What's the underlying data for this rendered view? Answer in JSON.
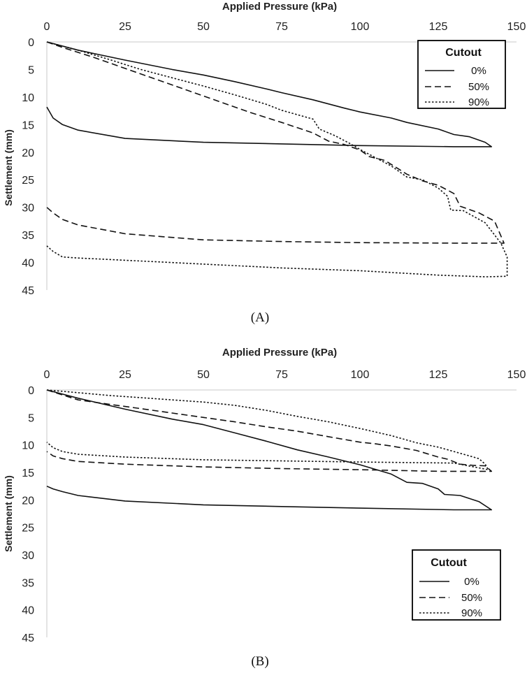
{
  "chart_data": [
    {
      "type": "line",
      "panel": "A",
      "caption": "(A)",
      "xlabel": "Applied Pressure (kPa)",
      "ylabel": "Settlement (mm)",
      "xlim": [
        0,
        150
      ],
      "ylim": [
        0,
        45
      ],
      "x_ticks": [
        "0",
        "25",
        "50",
        "75",
        "100",
        "125",
        "150"
      ],
      "y_ticks": [
        "0",
        "5",
        "10",
        "15",
        "20",
        "25",
        "30",
        "35",
        "40",
        "45"
      ],
      "x_axis_position": "top",
      "y_inverted": true,
      "legend": {
        "title": "Cutout",
        "position": "top-right",
        "entries": [
          "0%",
          "50%",
          "90%"
        ]
      },
      "series": [
        {
          "name": "0%",
          "style": "solid",
          "points": [
            [
              0,
              0
            ],
            [
              10,
              1.5
            ],
            [
              25,
              3.3
            ],
            [
              40,
              5.0
            ],
            [
              50,
              6.0
            ],
            [
              60,
              7.2
            ],
            [
              70,
              8.5
            ],
            [
              75,
              9.2
            ],
            [
              85,
              10.5
            ],
            [
              95,
              12.0
            ],
            [
              100,
              12.7
            ],
            [
              110,
              13.8
            ],
            [
              115,
              14.6
            ],
            [
              125,
              15.8
            ],
            [
              130,
              16.8
            ],
            [
              135,
              17.2
            ],
            [
              140,
              18.2
            ],
            [
              142,
              19
            ],
            [
              130,
              19.0
            ],
            [
              100,
              18.8
            ],
            [
              75,
              18.5
            ],
            [
              50,
              18.2
            ],
            [
              25,
              17.5
            ],
            [
              10,
              16.0
            ],
            [
              5,
              15.0
            ],
            [
              2,
              13.8
            ],
            [
              1,
              12.8
            ],
            [
              0,
              11.8
            ]
          ]
        },
        {
          "name": "50%",
          "style": "dashed",
          "points": [
            [
              0,
              0
            ],
            [
              5,
              1.0
            ],
            [
              15,
              2.8
            ],
            [
              25,
              4.8
            ],
            [
              35,
              6.8
            ],
            [
              45,
              8.8
            ],
            [
              55,
              10.8
            ],
            [
              65,
              12.8
            ],
            [
              75,
              14.6
            ],
            [
              85,
              16.5
            ],
            [
              90,
              18.0
            ],
            [
              95,
              18.6
            ],
            [
              100,
              19.6
            ],
            [
              103,
              20.8
            ],
            [
              108,
              21.5
            ],
            [
              115,
              24.0
            ],
            [
              120,
              25.2
            ],
            [
              125,
              26.0
            ],
            [
              130,
              27.5
            ],
            [
              132,
              29.8
            ],
            [
              138,
              31.0
            ],
            [
              143,
              32.5
            ],
            [
              146,
              36.5
            ],
            [
              130,
              36.5
            ],
            [
              100,
              36.4
            ],
            [
              75,
              36.2
            ],
            [
              50,
              35.9
            ],
            [
              25,
              34.8
            ],
            [
              10,
              33.2
            ],
            [
              5,
              32.2
            ],
            [
              2,
              31.0
            ],
            [
              0,
              30.0
            ]
          ]
        },
        {
          "name": "90%",
          "style": "dotted",
          "points": [
            [
              0,
              0
            ],
            [
              10,
              1.5
            ],
            [
              20,
              3.2
            ],
            [
              30,
              5.0
            ],
            [
              40,
              6.5
            ],
            [
              50,
              8.0
            ],
            [
              60,
              9.6
            ],
            [
              70,
              11.3
            ],
            [
              75,
              12.4
            ],
            [
              85,
              14.0
            ],
            [
              87,
              15.8
            ],
            [
              92,
              17.0
            ],
            [
              97,
              18.5
            ],
            [
              100,
              19.5
            ],
            [
              105,
              21.0
            ],
            [
              110,
              22.5
            ],
            [
              115,
              24.5
            ],
            [
              120,
              25.0
            ],
            [
              125,
              26.5
            ],
            [
              128,
              28.0
            ],
            [
              129,
              30.5
            ],
            [
              133,
              30.6
            ],
            [
              140,
              32.8
            ],
            [
              145,
              36.5
            ],
            [
              147,
              39.0
            ],
            [
              147,
              42.5
            ],
            [
              140,
              42.6
            ],
            [
              125,
              42.3
            ],
            [
              100,
              41.5
            ],
            [
              75,
              41.0
            ],
            [
              50,
              40.3
            ],
            [
              25,
              39.6
            ],
            [
              10,
              39.2
            ],
            [
              5,
              39.0
            ],
            [
              2,
              38.0
            ],
            [
              0,
              37.0
            ]
          ]
        }
      ]
    },
    {
      "type": "line",
      "panel": "B",
      "caption": "(B)",
      "xlabel": "Applied Pressure (kPa)",
      "ylabel": "Settlement (mm)",
      "xlim": [
        0,
        150
      ],
      "ylim": [
        0,
        45
      ],
      "x_ticks": [
        "0",
        "25",
        "50",
        "75",
        "100",
        "125",
        "150"
      ],
      "y_ticks": [
        "0",
        "5",
        "10",
        "15",
        "20",
        "25",
        "30",
        "35",
        "40",
        "45"
      ],
      "x_axis_position": "top",
      "y_inverted": true,
      "legend": {
        "title": "Cutout",
        "position": "bottom-right",
        "entries": [
          "0%",
          "50%",
          "90%"
        ]
      },
      "series": [
        {
          "name": "0%",
          "style": "solid",
          "points": [
            [
              0,
              0
            ],
            [
              10,
              1.5
            ],
            [
              25,
              3.5
            ],
            [
              40,
              5.3
            ],
            [
              50,
              6.3
            ],
            [
              60,
              7.8
            ],
            [
              70,
              9.3
            ],
            [
              80,
              10.9
            ],
            [
              90,
              12.2
            ],
            [
              100,
              13.6
            ],
            [
              110,
              15.3
            ],
            [
              115,
              16.8
            ],
            [
              120,
              17.0
            ],
            [
              125,
              18.0
            ],
            [
              127,
              19.0
            ],
            [
              132,
              19.2
            ],
            [
              138,
              20.3
            ],
            [
              142,
              21.8
            ],
            [
              130,
              21.8
            ],
            [
              100,
              21.5
            ],
            [
              75,
              21.2
            ],
            [
              50,
              20.9
            ],
            [
              25,
              20.2
            ],
            [
              10,
              19.2
            ],
            [
              5,
              18.5
            ],
            [
              2,
              18.0
            ],
            [
              0,
              17.5
            ]
          ]
        },
        {
          "name": "50%",
          "style": "dashed",
          "points": [
            [
              0,
              0
            ],
            [
              10,
              1.8
            ],
            [
              20,
              2.6
            ],
            [
              30,
              3.4
            ],
            [
              40,
              4.2
            ],
            [
              50,
              5.0
            ],
            [
              60,
              5.8
            ],
            [
              70,
              6.7
            ],
            [
              80,
              7.5
            ],
            [
              90,
              8.5
            ],
            [
              100,
              9.5
            ],
            [
              105,
              9.8
            ],
            [
              110,
              10.2
            ],
            [
              118,
              11.0
            ],
            [
              125,
              12.2
            ],
            [
              128,
              12.6
            ],
            [
              132,
              13.5
            ],
            [
              136,
              13.7
            ],
            [
              140,
              13.8
            ],
            [
              142,
              14.8
            ],
            [
              125,
              14.8
            ],
            [
              100,
              14.5
            ],
            [
              75,
              14.3
            ],
            [
              50,
              14.0
            ],
            [
              25,
              13.5
            ],
            [
              10,
              13.0
            ],
            [
              5,
              12.5
            ],
            [
              2,
              12.0
            ],
            [
              0,
              11.2
            ]
          ]
        },
        {
          "name": "90%",
          "style": "dotted",
          "points": [
            [
              0,
              0
            ],
            [
              10,
              0.5
            ],
            [
              20,
              1.0
            ],
            [
              30,
              1.4
            ],
            [
              40,
              1.8
            ],
            [
              50,
              2.2
            ],
            [
              60,
              2.8
            ],
            [
              70,
              3.7
            ],
            [
              80,
              4.8
            ],
            [
              90,
              5.8
            ],
            [
              100,
              7.0
            ],
            [
              110,
              8.3
            ],
            [
              118,
              9.6
            ],
            [
              125,
              10.4
            ],
            [
              130,
              11.2
            ],
            [
              135,
              12.0
            ],
            [
              138,
              12.5
            ],
            [
              140,
              13.5
            ],
            [
              141,
              14.5
            ],
            [
              130,
              13.3
            ],
            [
              100,
              13.1
            ],
            [
              75,
              12.9
            ],
            [
              50,
              12.7
            ],
            [
              25,
              12.2
            ],
            [
              10,
              11.7
            ],
            [
              5,
              11.2
            ],
            [
              2,
              10.5
            ],
            [
              0,
              9.5
            ]
          ]
        }
      ]
    }
  ]
}
